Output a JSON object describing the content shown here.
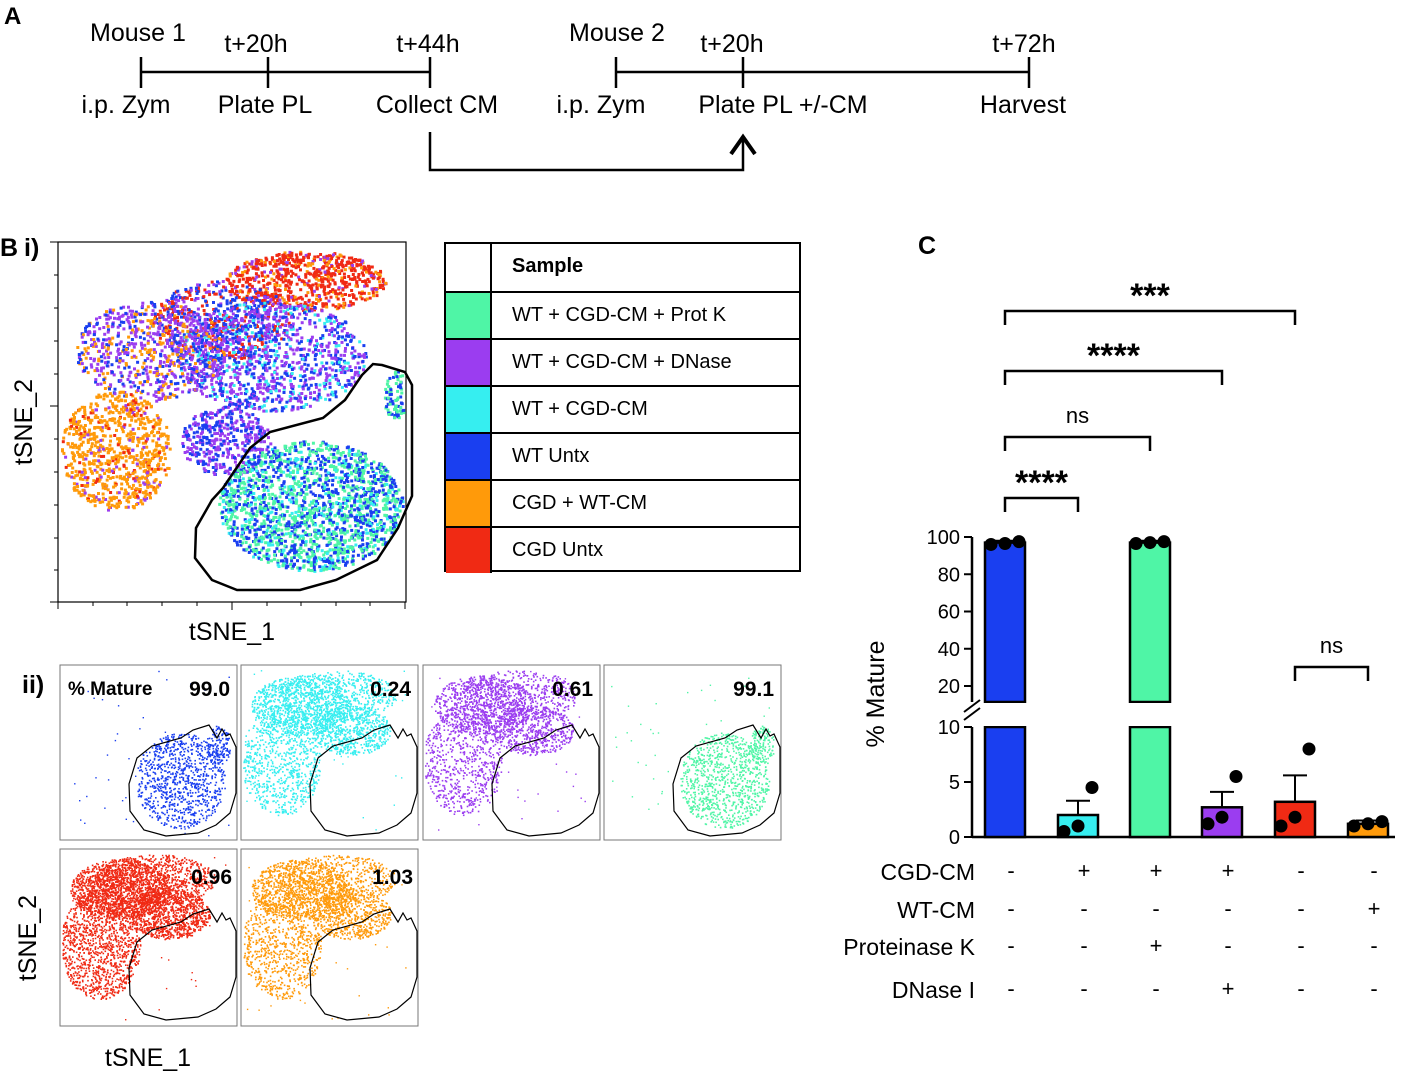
{
  "panel_a": {
    "label": "A",
    "timeline1": {
      "mouse": "Mouse 1",
      "times": [
        "t+20h",
        "t+44h"
      ],
      "events": [
        "i.p. Zym",
        "Plate PL",
        "Collect CM"
      ]
    },
    "timeline2": {
      "mouse": "Mouse 2",
      "times": [
        "t+20h",
        "t+72h"
      ],
      "events": [
        "i.p. Zym",
        "Plate PL +/-CM",
        "Harvest"
      ]
    }
  },
  "panel_b": {
    "label": "B",
    "sub_i": "i)",
    "sub_ii": "ii)",
    "xlabel": "tSNE_1",
    "ylabel": "tSNE_2",
    "legend": {
      "header": "Sample",
      "entries": [
        {
          "label": "WT + CGD-CM + Prot K",
          "color": "#4ff5a6"
        },
        {
          "label": "WT + CGD-CM + DNase",
          "color": "#9b3df0"
        },
        {
          "label": "WT + CGD-CM",
          "color": "#36eef0"
        },
        {
          "label": "WT Untx",
          "color": "#1a3ff0"
        },
        {
          "label": "CGD + WT-CM",
          "color": "#ff9a0a"
        },
        {
          "label": "CGD Untx",
          "color": "#f02a14"
        }
      ]
    },
    "small_plots": {
      "title": "% Mature",
      "values": [
        "99.0",
        "0.24",
        "0.61",
        "99.1",
        "0.96",
        "1.03"
      ],
      "colors": [
        "#1a3ff0",
        "#36eef0",
        "#9b3df0",
        "#4ff5a6",
        "#f02a14",
        "#ff9a0a"
      ]
    }
  },
  "panel_c": {
    "label": "C",
    "significance": [
      "***",
      "****",
      "ns",
      "****",
      "ns"
    ],
    "rows": [
      {
        "name": "CGD-CM",
        "marks": [
          "-",
          "+",
          "+",
          "+",
          "-",
          "-"
        ]
      },
      {
        "name": "WT-CM",
        "marks": [
          "-",
          "-",
          "-",
          "-",
          "-",
          "+"
        ]
      },
      {
        "name": "Proteinase K",
        "marks": [
          "-",
          "-",
          "+",
          "-",
          "-",
          "-"
        ]
      },
      {
        "name": "DNase I",
        "marks": [
          "-",
          "-",
          "-",
          "+",
          "-",
          "-"
        ]
      }
    ]
  },
  "chart_data": {
    "type": "bar",
    "ylabel": "% Mature",
    "y_axis_broken": true,
    "y_ticks_lower": [
      "0",
      "5",
      "10"
    ],
    "y_ticks_upper": [
      "20",
      "40",
      "60",
      "80",
      "100"
    ],
    "categories": [
      "WT Untx",
      "WT + CGD-CM",
      "WT + CGD-CM + Prot K",
      "WT + CGD-CM + DNase",
      "CGD Untx",
      "CGD + WT-CM"
    ],
    "values": [
      97,
      2.0,
      97,
      2.7,
      3.2,
      1.2
    ],
    "errors": [
      1.0,
      1.3,
      1.0,
      1.4,
      2.4,
      0.3
    ],
    "points": [
      [
        96,
        96.5,
        97.5
      ],
      [
        0.5,
        1.0,
        4.5
      ],
      [
        96.5,
        97,
        97.5
      ],
      [
        1.2,
        1.8,
        5.5
      ],
      [
        1.0,
        1.8,
        8.0
      ],
      [
        1.0,
        1.2,
        1.4
      ]
    ],
    "colors": [
      "#1a3ff0",
      "#36eef0",
      "#4ff5a6",
      "#9b3df0",
      "#f02a14",
      "#ff9a0a"
    ],
    "comparisons": [
      {
        "from": 0,
        "to": 4,
        "label": "***"
      },
      {
        "from": 0,
        "to": 3,
        "label": "****"
      },
      {
        "from": 0,
        "to": 2,
        "label": "ns"
      },
      {
        "from": 0,
        "to": 1,
        "label": "****"
      },
      {
        "from": 4,
        "to": 5,
        "label": "ns"
      }
    ]
  }
}
